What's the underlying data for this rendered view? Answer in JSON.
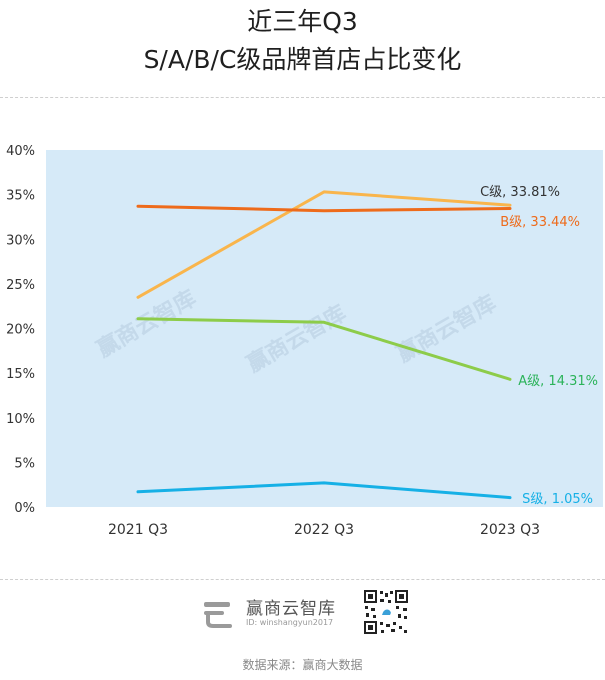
{
  "header": {
    "title_line1": "近三年Q3",
    "title_line2": "S/A/B/C级品牌首店占比变化"
  },
  "chart_data": {
    "type": "line",
    "categories": [
      "2021 Q3",
      "2022 Q3",
      "2023 Q3"
    ],
    "ylim": [
      0,
      40
    ],
    "yticks": [
      "0%",
      "5%",
      "10%",
      "15%",
      "20%",
      "25%",
      "30%",
      "35%",
      "40%"
    ],
    "ytick_values": [
      0,
      5,
      10,
      15,
      20,
      25,
      30,
      35,
      40
    ],
    "grid": false,
    "background": "#d6eaf8",
    "series": [
      {
        "name": "C级",
        "values": [
          23.5,
          35.3,
          33.81
        ],
        "color": "#f9b54c",
        "end_label": "C级, 33.81%",
        "label_color": "#333333"
      },
      {
        "name": "B级",
        "values": [
          33.7,
          33.2,
          33.44
        ],
        "color": "#ee6b1b",
        "end_label": "B级, 33.44%",
        "label_color": "#ee6b1b"
      },
      {
        "name": "A级",
        "values": [
          21.1,
          20.7,
          14.31
        ],
        "color": "#8dcc4a",
        "end_label": "A级, 14.31%",
        "label_color": "#2bb35a"
      },
      {
        "name": "S级",
        "values": [
          1.7,
          2.7,
          1.05
        ],
        "color": "#16b0e6",
        "end_label": "S级, 1.05%",
        "label_color": "#16b0e6"
      }
    ]
  },
  "footer": {
    "brand_name": "赢商云智库",
    "brand_id": "ID: winshangyun2017",
    "logo_icon": "winshang-logo-icon",
    "qr_icon": "qr-code-icon",
    "watermark": "赢商云智库",
    "source": "数据来源：赢商大数据"
  }
}
